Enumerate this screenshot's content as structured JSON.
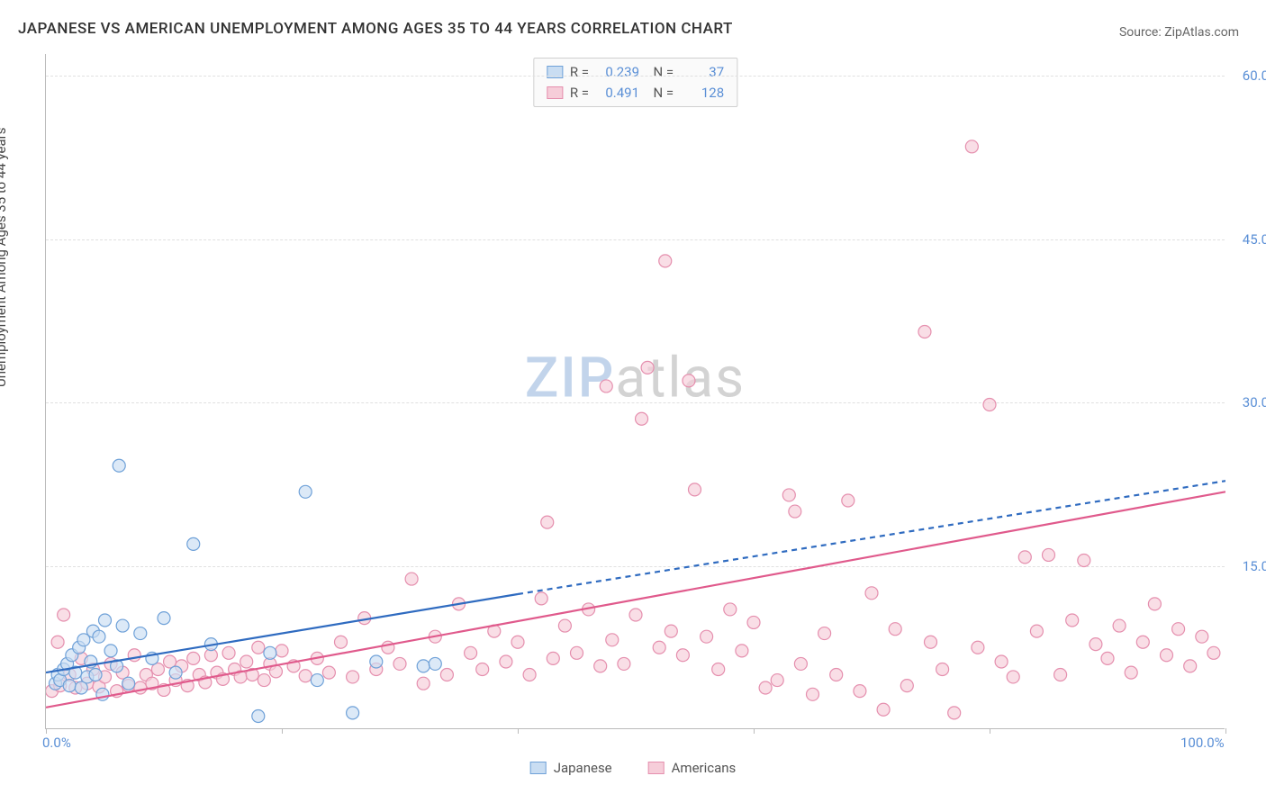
{
  "title": "JAPANESE VS AMERICAN UNEMPLOYMENT AMONG AGES 35 TO 44 YEARS CORRELATION CHART",
  "source": "Source: ZipAtlas.com",
  "ylabel": "Unemployment Among Ages 35 to 44 years",
  "watermark": {
    "part1": "ZIP",
    "part2": "atlas"
  },
  "chart": {
    "type": "scatter",
    "background_color": "#ffffff",
    "grid_color": "#e0e0e0",
    "axis_color": "#bbbbbb",
    "tick_label_color": "#5a8fd6",
    "tick_fontsize": 15,
    "label_fontsize": 15,
    "title_fontsize": 17,
    "xlim": [
      0,
      100
    ],
    "ylim": [
      0,
      62
    ],
    "xticks": [
      0,
      20,
      40,
      60,
      80,
      100
    ],
    "xtick_labels": [
      "0.0%",
      "",
      "",
      "",
      "",
      "100.0%"
    ],
    "yticks": [
      15,
      30,
      45,
      60
    ],
    "ytick_labels": [
      "15.0%",
      "30.0%",
      "45.0%",
      "60.0%"
    ],
    "marker_radius": 7,
    "marker_stroke_width": 1.2,
    "series": [
      {
        "name": "Japanese",
        "fill": "#c9ddf2",
        "stroke": "#6fa1d8",
        "fill_opacity": 0.65,
        "R": "0.239",
        "N": "37",
        "trend": {
          "solid": {
            "x1": 0,
            "y1": 5.2,
            "x2": 40,
            "y2": 12.4
          },
          "dashed": {
            "x1": 40,
            "y1": 12.4,
            "x2": 100,
            "y2": 22.8
          },
          "color": "#2f6bc0",
          "width": 2.2,
          "dash": "6,5"
        },
        "points": [
          [
            0.8,
            4.2
          ],
          [
            1.0,
            5.0
          ],
          [
            1.2,
            4.5
          ],
          [
            1.5,
            5.5
          ],
          [
            1.8,
            6.0
          ],
          [
            2.0,
            4.0
          ],
          [
            2.2,
            6.8
          ],
          [
            2.5,
            5.2
          ],
          [
            2.8,
            7.5
          ],
          [
            3.0,
            3.8
          ],
          [
            3.2,
            8.2
          ],
          [
            3.5,
            4.8
          ],
          [
            3.8,
            6.2
          ],
          [
            4.0,
            9.0
          ],
          [
            4.2,
            5.0
          ],
          [
            4.5,
            8.5
          ],
          [
            4.8,
            3.2
          ],
          [
            5.0,
            10.0
          ],
          [
            5.5,
            7.2
          ],
          [
            6.0,
            5.8
          ],
          [
            6.2,
            24.2
          ],
          [
            6.5,
            9.5
          ],
          [
            7.0,
            4.2
          ],
          [
            8.0,
            8.8
          ],
          [
            9.0,
            6.5
          ],
          [
            10.0,
            10.2
          ],
          [
            11.0,
            5.2
          ],
          [
            12.5,
            17.0
          ],
          [
            14.0,
            7.8
          ],
          [
            18.0,
            1.2
          ],
          [
            19.0,
            7.0
          ],
          [
            22.0,
            21.8
          ],
          [
            23.0,
            4.5
          ],
          [
            26.0,
            1.5
          ],
          [
            28.0,
            6.2
          ],
          [
            32.0,
            5.8
          ],
          [
            33.0,
            6.0
          ]
        ]
      },
      {
        "name": "Americans",
        "fill": "#f6cdd9",
        "stroke": "#e58fae",
        "fill_opacity": 0.65,
        "R": "0.491",
        "N": "128",
        "trend": {
          "solid": {
            "x1": 0,
            "y1": 2.0,
            "x2": 100,
            "y2": 21.8
          },
          "color": "#e05a8c",
          "width": 2.2
        },
        "points": [
          [
            0.5,
            3.5
          ],
          [
            1.0,
            8.0
          ],
          [
            1.2,
            4.0
          ],
          [
            1.5,
            10.5
          ],
          [
            2.0,
            5.0
          ],
          [
            2.5,
            3.8
          ],
          [
            3.0,
            6.5
          ],
          [
            3.5,
            4.2
          ],
          [
            4.0,
            5.5
          ],
          [
            4.5,
            3.9
          ],
          [
            5.0,
            4.8
          ],
          [
            5.5,
            6.0
          ],
          [
            6.0,
            3.5
          ],
          [
            6.5,
            5.2
          ],
          [
            7.0,
            4.0
          ],
          [
            7.5,
            6.8
          ],
          [
            8.0,
            3.8
          ],
          [
            8.5,
            5.0
          ],
          [
            9.0,
            4.2
          ],
          [
            9.5,
            5.5
          ],
          [
            10.0,
            3.6
          ],
          [
            10.5,
            6.2
          ],
          [
            11.0,
            4.5
          ],
          [
            11.5,
            5.8
          ],
          [
            12.0,
            4.0
          ],
          [
            12.5,
            6.5
          ],
          [
            13.0,
            5.0
          ],
          [
            13.5,
            4.3
          ],
          [
            14.0,
            6.8
          ],
          [
            14.5,
            5.2
          ],
          [
            15.0,
            4.6
          ],
          [
            15.5,
            7.0
          ],
          [
            16.0,
            5.5
          ],
          [
            16.5,
            4.8
          ],
          [
            17.0,
            6.2
          ],
          [
            17.5,
            5.0
          ],
          [
            18.0,
            7.5
          ],
          [
            18.5,
            4.5
          ],
          [
            19.0,
            6.0
          ],
          [
            19.5,
            5.3
          ],
          [
            20.0,
            7.2
          ],
          [
            21.0,
            5.8
          ],
          [
            22.0,
            4.9
          ],
          [
            23.0,
            6.5
          ],
          [
            24.0,
            5.2
          ],
          [
            25.0,
            8.0
          ],
          [
            26.0,
            4.8
          ],
          [
            27.0,
            10.2
          ],
          [
            28.0,
            5.5
          ],
          [
            29.0,
            7.5
          ],
          [
            30.0,
            6.0
          ],
          [
            31.0,
            13.8
          ],
          [
            32.0,
            4.2
          ],
          [
            33.0,
            8.5
          ],
          [
            34.0,
            5.0
          ],
          [
            35.0,
            11.5
          ],
          [
            36.0,
            7.0
          ],
          [
            37.0,
            5.5
          ],
          [
            38.0,
            9.0
          ],
          [
            39.0,
            6.2
          ],
          [
            40.0,
            8.0
          ],
          [
            41.0,
            5.0
          ],
          [
            42.0,
            12.0
          ],
          [
            42.5,
            19.0
          ],
          [
            43.0,
            6.5
          ],
          [
            44.0,
            9.5
          ],
          [
            45.0,
            7.0
          ],
          [
            46.0,
            11.0
          ],
          [
            47.0,
            5.8
          ],
          [
            47.5,
            31.5
          ],
          [
            48.0,
            8.2
          ],
          [
            49.0,
            6.0
          ],
          [
            50.0,
            10.5
          ],
          [
            50.5,
            28.5
          ],
          [
            51.0,
            33.2
          ],
          [
            52.0,
            7.5
          ],
          [
            52.5,
            43.0
          ],
          [
            53.0,
            9.0
          ],
          [
            54.0,
            6.8
          ],
          [
            54.5,
            32.0
          ],
          [
            55.0,
            22.0
          ],
          [
            56.0,
            8.5
          ],
          [
            57.0,
            5.5
          ],
          [
            58.0,
            11.0
          ],
          [
            59.0,
            7.2
          ],
          [
            60.0,
            9.8
          ],
          [
            61.0,
            3.8
          ],
          [
            62.0,
            4.5
          ],
          [
            63.0,
            21.5
          ],
          [
            63.5,
            20.0
          ],
          [
            64.0,
            6.0
          ],
          [
            65.0,
            3.2
          ],
          [
            66.0,
            8.8
          ],
          [
            67.0,
            5.0
          ],
          [
            68.0,
            21.0
          ],
          [
            69.0,
            3.5
          ],
          [
            70.0,
            12.5
          ],
          [
            71.0,
            1.8
          ],
          [
            72.0,
            9.2
          ],
          [
            73.0,
            4.0
          ],
          [
            74.5,
            36.5
          ],
          [
            75.0,
            8.0
          ],
          [
            76.0,
            5.5
          ],
          [
            77.0,
            1.5
          ],
          [
            78.5,
            53.5
          ],
          [
            79.0,
            7.5
          ],
          [
            80.0,
            29.8
          ],
          [
            81.0,
            6.2
          ],
          [
            82.0,
            4.8
          ],
          [
            83.0,
            15.8
          ],
          [
            84.0,
            9.0
          ],
          [
            85.0,
            16.0
          ],
          [
            86.0,
            5.0
          ],
          [
            87.0,
            10.0
          ],
          [
            88.0,
            15.5
          ],
          [
            89.0,
            7.8
          ],
          [
            90.0,
            6.5
          ],
          [
            91.0,
            9.5
          ],
          [
            92.0,
            5.2
          ],
          [
            93.0,
            8.0
          ],
          [
            94.0,
            11.5
          ],
          [
            95.0,
            6.8
          ],
          [
            96.0,
            9.2
          ],
          [
            97.0,
            5.8
          ],
          [
            98.0,
            8.5
          ],
          [
            99.0,
            7.0
          ]
        ]
      }
    ],
    "bottom_legend": [
      "Japanese",
      "Americans"
    ]
  }
}
